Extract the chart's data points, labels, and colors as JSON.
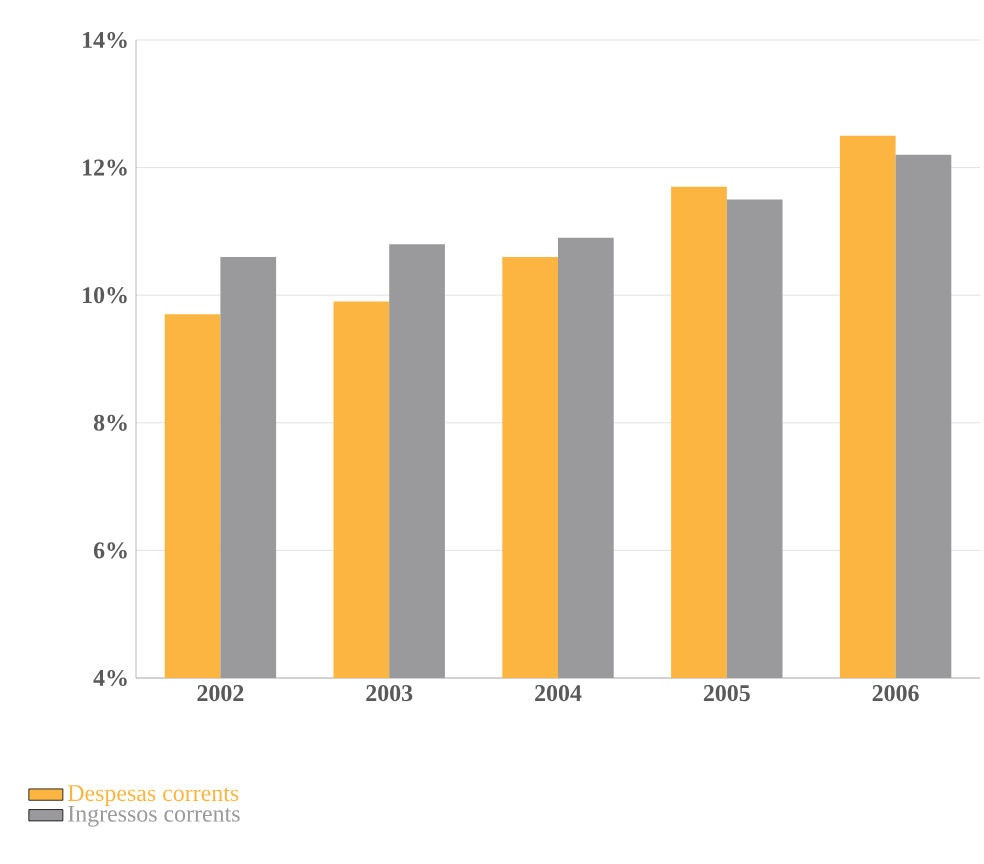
{
  "chart_data": {
    "type": "bar",
    "categories": [
      "2002",
      "2003",
      "2004",
      "2005",
      "2006"
    ],
    "series": [
      {
        "name": "Despesas corrents",
        "color": "#fbb540",
        "values": [
          9.7,
          9.9,
          10.6,
          11.7,
          12.5
        ]
      },
      {
        "name": "Ingressos corrents",
        "color": "#9a9a9c",
        "values": [
          10.6,
          10.8,
          10.9,
          11.5,
          12.2
        ]
      }
    ],
    "ylim": [
      4,
      14
    ],
    "yticks": [
      {
        "value": 4,
        "label": "4%"
      },
      {
        "value": 6,
        "label": "6%"
      },
      {
        "value": 8,
        "label": "8%"
      },
      {
        "value": 10,
        "label": "10%"
      },
      {
        "value": 12,
        "label": "12%"
      },
      {
        "value": 14,
        "label": "14%"
      }
    ],
    "grid": "y",
    "legend": "bottom left"
  }
}
